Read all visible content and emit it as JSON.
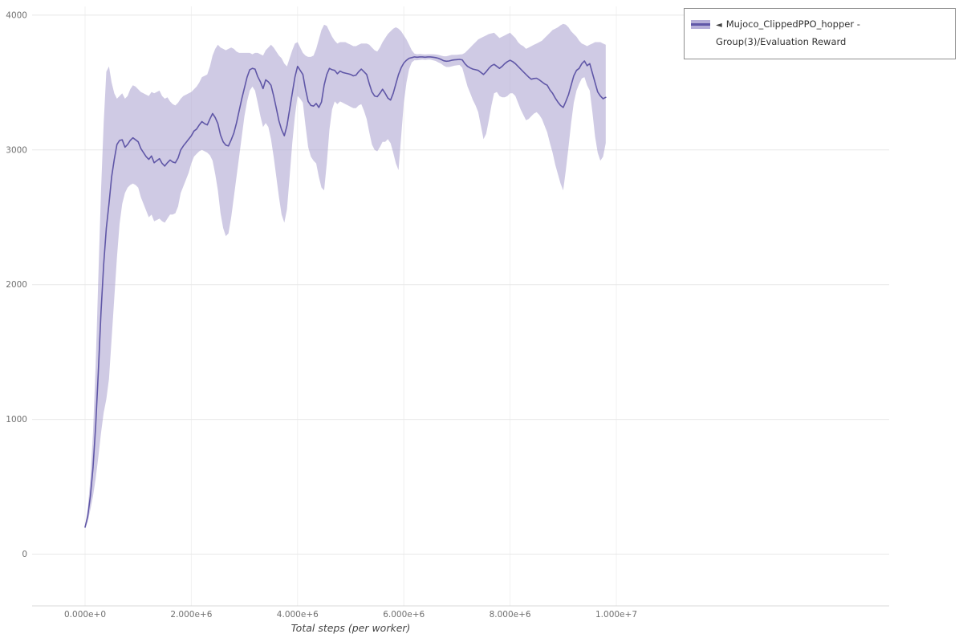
{
  "page": {
    "background": "#ffffff"
  },
  "legend": {
    "collapse_icon": "◄",
    "label": "Mujoco_ClippedPPO_hopper - Group(3)/Evaluation Reward",
    "line_color": "#6057a7",
    "band_color": "#b5aed8",
    "border_color": "#8f8f8f"
  },
  "axes": {
    "x_label": "Total steps (per worker)",
    "x_ticks": [
      {
        "value": 0,
        "label": "0.000e+0"
      },
      {
        "value": 2000000,
        "label": "2.000e+6"
      },
      {
        "value": 4000000,
        "label": "4.000e+6"
      },
      {
        "value": 6000000,
        "label": "6.000e+6"
      },
      {
        "value": 8000000,
        "label": "8.000e+6"
      },
      {
        "value": 10000000,
        "label": "1.000e+7"
      }
    ],
    "y_ticks": [
      0,
      1000,
      2000,
      3000,
      4000
    ]
  },
  "chart_data": {
    "type": "line",
    "title": "",
    "xlabel": "Total steps (per worker)",
    "ylabel": "",
    "xlim": [
      -1000000,
      15100000
    ],
    "ylim": [
      -380,
      4060
    ],
    "grid": true,
    "legend_position": "outside-top-right",
    "series": [
      {
        "name": "Mujoco_ClippedPPO_hopper - Group(3)/Evaluation Reward",
        "color": "#6057a7",
        "band_color": "#a79fce",
        "band_opacity": 0.55,
        "x_start": 0,
        "x_step": 50000,
        "mean": [
          200,
          280,
          430,
          640,
          950,
          1350,
          1800,
          2150,
          2420,
          2600,
          2800,
          2930,
          3040,
          3070,
          3075,
          3020,
          3040,
          3070,
          3090,
          3075,
          3060,
          3010,
          2980,
          2950,
          2930,
          2955,
          2905,
          2920,
          2935,
          2900,
          2880,
          2905,
          2925,
          2910,
          2905,
          2940,
          3000,
          3030,
          3055,
          3080,
          3105,
          3140,
          3155,
          3185,
          3210,
          3195,
          3185,
          3230,
          3270,
          3240,
          3195,
          3110,
          3060,
          3035,
          3030,
          3075,
          3125,
          3200,
          3290,
          3380,
          3460,
          3540,
          3595,
          3605,
          3600,
          3545,
          3505,
          3455,
          3520,
          3505,
          3480,
          3400,
          3310,
          3215,
          3150,
          3105,
          3180,
          3300,
          3420,
          3540,
          3620,
          3590,
          3560,
          3450,
          3360,
          3330,
          3325,
          3345,
          3315,
          3355,
          3480,
          3560,
          3605,
          3595,
          3590,
          3565,
          3585,
          3575,
          3570,
          3565,
          3560,
          3550,
          3555,
          3580,
          3600,
          3580,
          3560,
          3490,
          3430,
          3400,
          3395,
          3420,
          3450,
          3420,
          3385,
          3370,
          3420,
          3490,
          3560,
          3610,
          3645,
          3665,
          3680,
          3685,
          3690,
          3688,
          3690,
          3690,
          3688,
          3690,
          3690,
          3688,
          3685,
          3680,
          3672,
          3662,
          3658,
          3660,
          3665,
          3668,
          3670,
          3672,
          3668,
          3640,
          3620,
          3608,
          3600,
          3595,
          3590,
          3575,
          3560,
          3580,
          3605,
          3625,
          3635,
          3620,
          3605,
          3620,
          3640,
          3655,
          3665,
          3655,
          3640,
          3620,
          3600,
          3580,
          3560,
          3540,
          3525,
          3530,
          3532,
          3520,
          3505,
          3490,
          3480,
          3445,
          3420,
          3385,
          3355,
          3330,
          3315,
          3360,
          3410,
          3480,
          3550,
          3590,
          3605,
          3640,
          3660,
          3625,
          3640,
          3570,
          3500,
          3430,
          3400,
          3380,
          3390
        ],
        "lower": [
          190,
          240,
          330,
          430,
          560,
          720,
          900,
          1050,
          1150,
          1300,
          1600,
          1900,
          2200,
          2450,
          2600,
          2680,
          2720,
          2740,
          2750,
          2740,
          2720,
          2650,
          2600,
          2550,
          2500,
          2520,
          2470,
          2480,
          2490,
          2470,
          2460,
          2490,
          2520,
          2520,
          2530,
          2580,
          2680,
          2730,
          2780,
          2830,
          2900,
          2950,
          2970,
          2990,
          3000,
          2990,
          2980,
          2960,
          2920,
          2820,
          2700,
          2530,
          2420,
          2360,
          2380,
          2500,
          2650,
          2800,
          2950,
          3100,
          3250,
          3360,
          3440,
          3470,
          3440,
          3350,
          3250,
          3170,
          3200,
          3170,
          3080,
          2950,
          2800,
          2650,
          2520,
          2460,
          2560,
          2800,
          3050,
          3250,
          3400,
          3380,
          3350,
          3180,
          3020,
          2950,
          2920,
          2900,
          2800,
          2720,
          2700,
          2900,
          3150,
          3300,
          3360,
          3340,
          3360,
          3350,
          3340,
          3330,
          3320,
          3310,
          3310,
          3330,
          3340,
          3290,
          3230,
          3130,
          3040,
          3000,
          2990,
          3020,
          3060,
          3060,
          3080,
          3050,
          2980,
          2900,
          2850,
          3100,
          3350,
          3500,
          3600,
          3650,
          3665,
          3665,
          3668,
          3670,
          3668,
          3670,
          3670,
          3665,
          3660,
          3650,
          3640,
          3625,
          3615,
          3615,
          3620,
          3625,
          3628,
          3630,
          3610,
          3540,
          3470,
          3420,
          3370,
          3330,
          3280,
          3180,
          3080,
          3120,
          3220,
          3330,
          3420,
          3430,
          3400,
          3390,
          3390,
          3400,
          3420,
          3420,
          3400,
          3350,
          3300,
          3260,
          3220,
          3230,
          3250,
          3270,
          3280,
          3260,
          3230,
          3180,
          3130,
          3050,
          2980,
          2890,
          2820,
          2750,
          2700,
          2850,
          3020,
          3200,
          3350,
          3440,
          3490,
          3530,
          3540,
          3480,
          3440,
          3280,
          3100,
          2980,
          2920,
          2950,
          3050
        ],
        "upper": [
          210,
          330,
          560,
          900,
          1400,
          2050,
          2700,
          3200,
          3580,
          3620,
          3500,
          3420,
          3380,
          3400,
          3420,
          3380,
          3400,
          3450,
          3480,
          3470,
          3450,
          3430,
          3420,
          3410,
          3400,
          3430,
          3420,
          3430,
          3440,
          3400,
          3380,
          3390,
          3360,
          3340,
          3330,
          3350,
          3380,
          3400,
          3410,
          3420,
          3430,
          3450,
          3470,
          3500,
          3540,
          3550,
          3560,
          3620,
          3700,
          3750,
          3780,
          3760,
          3750,
          3740,
          3750,
          3760,
          3750,
          3730,
          3720,
          3720,
          3720,
          3720,
          3720,
          3710,
          3720,
          3720,
          3710,
          3700,
          3740,
          3760,
          3780,
          3760,
          3730,
          3700,
          3680,
          3640,
          3620,
          3680,
          3740,
          3790,
          3800,
          3760,
          3720,
          3700,
          3690,
          3690,
          3700,
          3750,
          3820,
          3890,
          3930,
          3920,
          3880,
          3840,
          3810,
          3790,
          3800,
          3800,
          3800,
          3790,
          3780,
          3770,
          3770,
          3780,
          3790,
          3790,
          3790,
          3780,
          3760,
          3740,
          3730,
          3760,
          3800,
          3830,
          3860,
          3880,
          3900,
          3910,
          3900,
          3880,
          3850,
          3820,
          3780,
          3740,
          3715,
          3710,
          3712,
          3710,
          3708,
          3710,
          3710,
          3710,
          3708,
          3705,
          3700,
          3695,
          3695,
          3700,
          3705,
          3705,
          3706,
          3708,
          3710,
          3720,
          3740,
          3760,
          3780,
          3800,
          3820,
          3830,
          3840,
          3850,
          3860,
          3865,
          3870,
          3850,
          3830,
          3840,
          3850,
          3860,
          3870,
          3850,
          3830,
          3800,
          3780,
          3770,
          3750,
          3760,
          3770,
          3780,
          3790,
          3800,
          3810,
          3830,
          3850,
          3870,
          3890,
          3900,
          3910,
          3925,
          3935,
          3930,
          3910,
          3880,
          3860,
          3840,
          3810,
          3790,
          3780,
          3770,
          3780,
          3790,
          3800,
          3800,
          3800,
          3790,
          3780
        ]
      }
    ]
  }
}
